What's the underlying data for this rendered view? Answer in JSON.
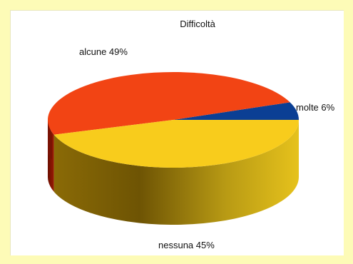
{
  "chart_data": {
    "type": "pie",
    "title": "Difficoltà",
    "slices": [
      {
        "label": "molte",
        "value": 6,
        "color": "#0b3f94",
        "display": "molte 6%"
      },
      {
        "label": "alcune",
        "value": 49,
        "color": "#f24414",
        "display": "alcune 49%"
      },
      {
        "label": "nessuna",
        "value": 45,
        "color": "#f8cc1c",
        "display": "nessuna 45%"
      }
    ]
  },
  "colors": {
    "page_background": "#fdfbb7",
    "chart_background": "#ffffff"
  }
}
